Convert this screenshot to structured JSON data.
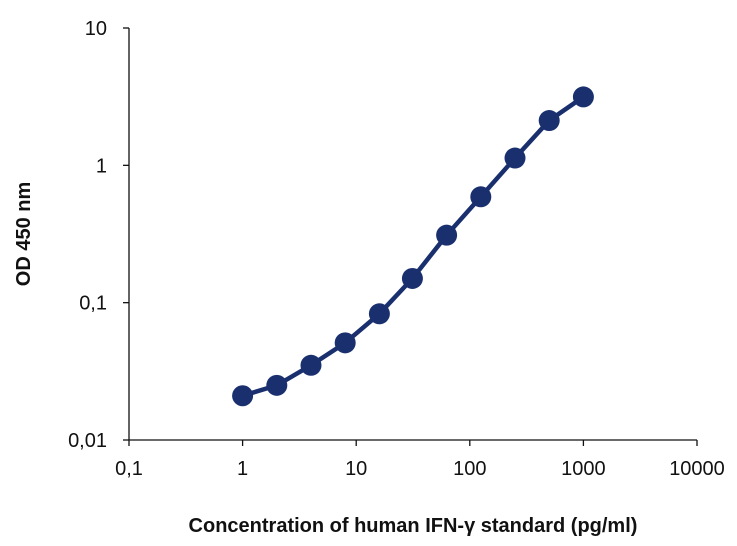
{
  "chart_data": {
    "type": "line",
    "title": "",
    "xlabel": "Concentration of human IFN-γ standard (pg/ml)",
    "ylabel": "OD 450 nm",
    "xscale": "log",
    "yscale": "log",
    "xlim": [
      0.1,
      10000
    ],
    "ylim": [
      0.01,
      10
    ],
    "x_ticks": [
      0.1,
      1,
      10,
      100,
      1000,
      10000
    ],
    "x_tick_labels": [
      "0,1",
      "1",
      "10",
      "100",
      "1000",
      "10000"
    ],
    "y_ticks": [
      0.01,
      0.1,
      1,
      10
    ],
    "y_tick_labels": [
      "0,01",
      "0,1",
      "1",
      "10"
    ],
    "grid": false,
    "legend": "none",
    "series": [
      {
        "x": [
          1,
          2,
          4,
          8,
          16,
          31.25,
          62.5,
          125,
          250,
          500,
          1000
        ],
        "y": [
          0.021,
          0.025,
          0.035,
          0.051,
          0.083,
          0.15,
          0.31,
          0.59,
          1.13,
          2.12,
          3.15
        ],
        "color": "#1a2f6e",
        "marker": "circle"
      }
    ]
  }
}
